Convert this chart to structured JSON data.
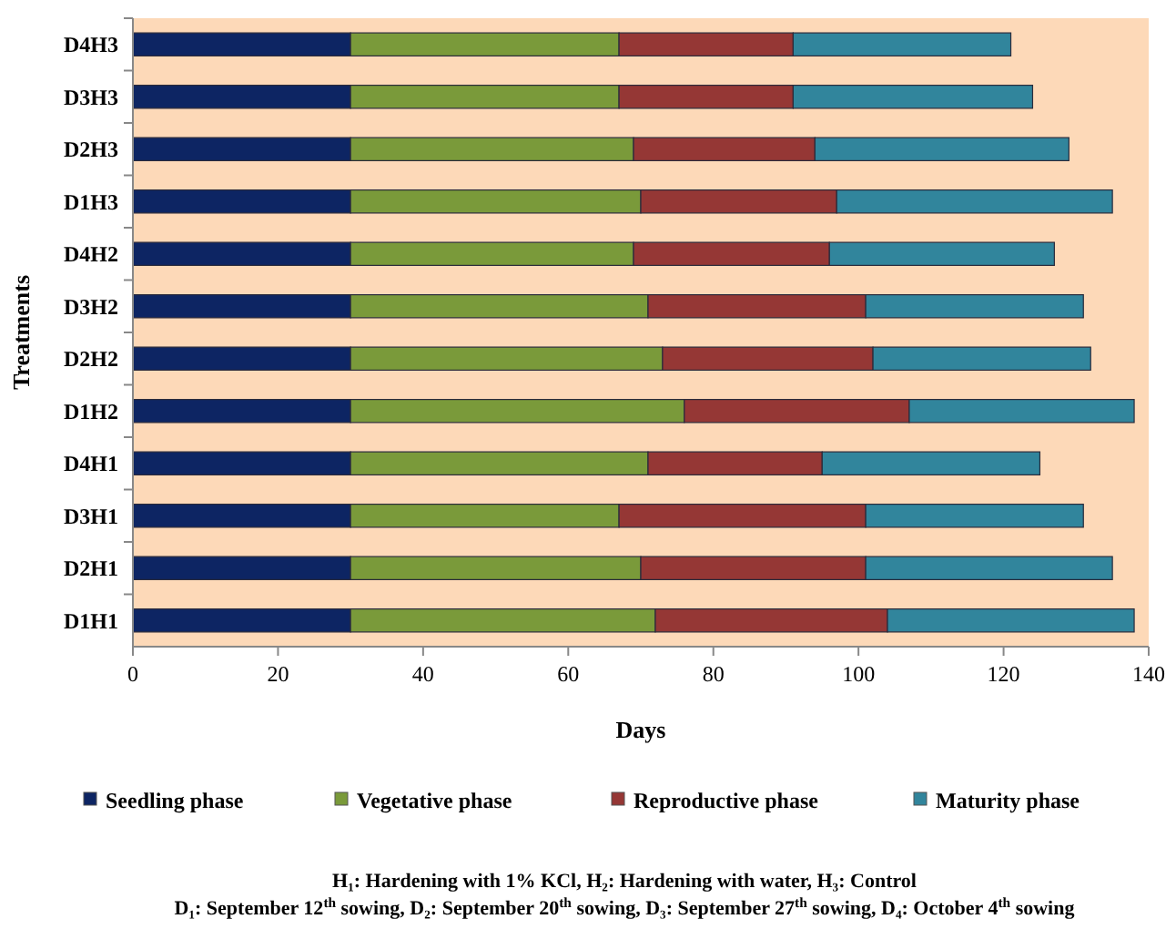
{
  "chart_data": {
    "type": "bar",
    "orientation": "horizontal",
    "stacked": true,
    "xlabel": "Days",
    "ylabel": "Treatments",
    "categories": [
      "D4H3",
      "D3H3",
      "D2H3",
      "D1H3",
      "D4H2",
      "D3H2",
      "D2H2",
      "D1H2",
      "D4H1",
      "D3H1",
      "D2H1",
      "D1H1"
    ],
    "series": [
      {
        "name": "Seedling phase",
        "color": "#0d2563",
        "values": [
          30,
          30,
          30,
          30,
          30,
          30,
          30,
          30,
          30,
          30,
          30,
          30
        ]
      },
      {
        "name": "Vegetative phase",
        "color": "#7a9a3a",
        "values": [
          37,
          37,
          39,
          40,
          39,
          41,
          43,
          46,
          41,
          37,
          40,
          42
        ]
      },
      {
        "name": "Reproductive phase",
        "color": "#953735",
        "values": [
          24,
          24,
          25,
          27,
          27,
          30,
          29,
          31,
          24,
          34,
          31,
          32
        ]
      },
      {
        "name": "Maturity phase",
        "color": "#31859c",
        "values": [
          30,
          33,
          35,
          38,
          31,
          30,
          30,
          31,
          30,
          30,
          34,
          34
        ]
      }
    ],
    "xlim": [
      0,
      140
    ],
    "xticks": [
      0,
      20,
      40,
      60,
      80,
      100,
      120,
      140
    ],
    "grid": false,
    "legend": "bottom",
    "annotations": [
      "H₁: Hardening with 1% KCl, H₂: Hardening with water, H₃: Control",
      "D₁: September 12$^{th}$ sowing, D₂: September 20$^{th}$ sowing, D₃: September 27$^{th}$ sowing, D₄: October 4$^{th}$ sowing"
    ]
  }
}
